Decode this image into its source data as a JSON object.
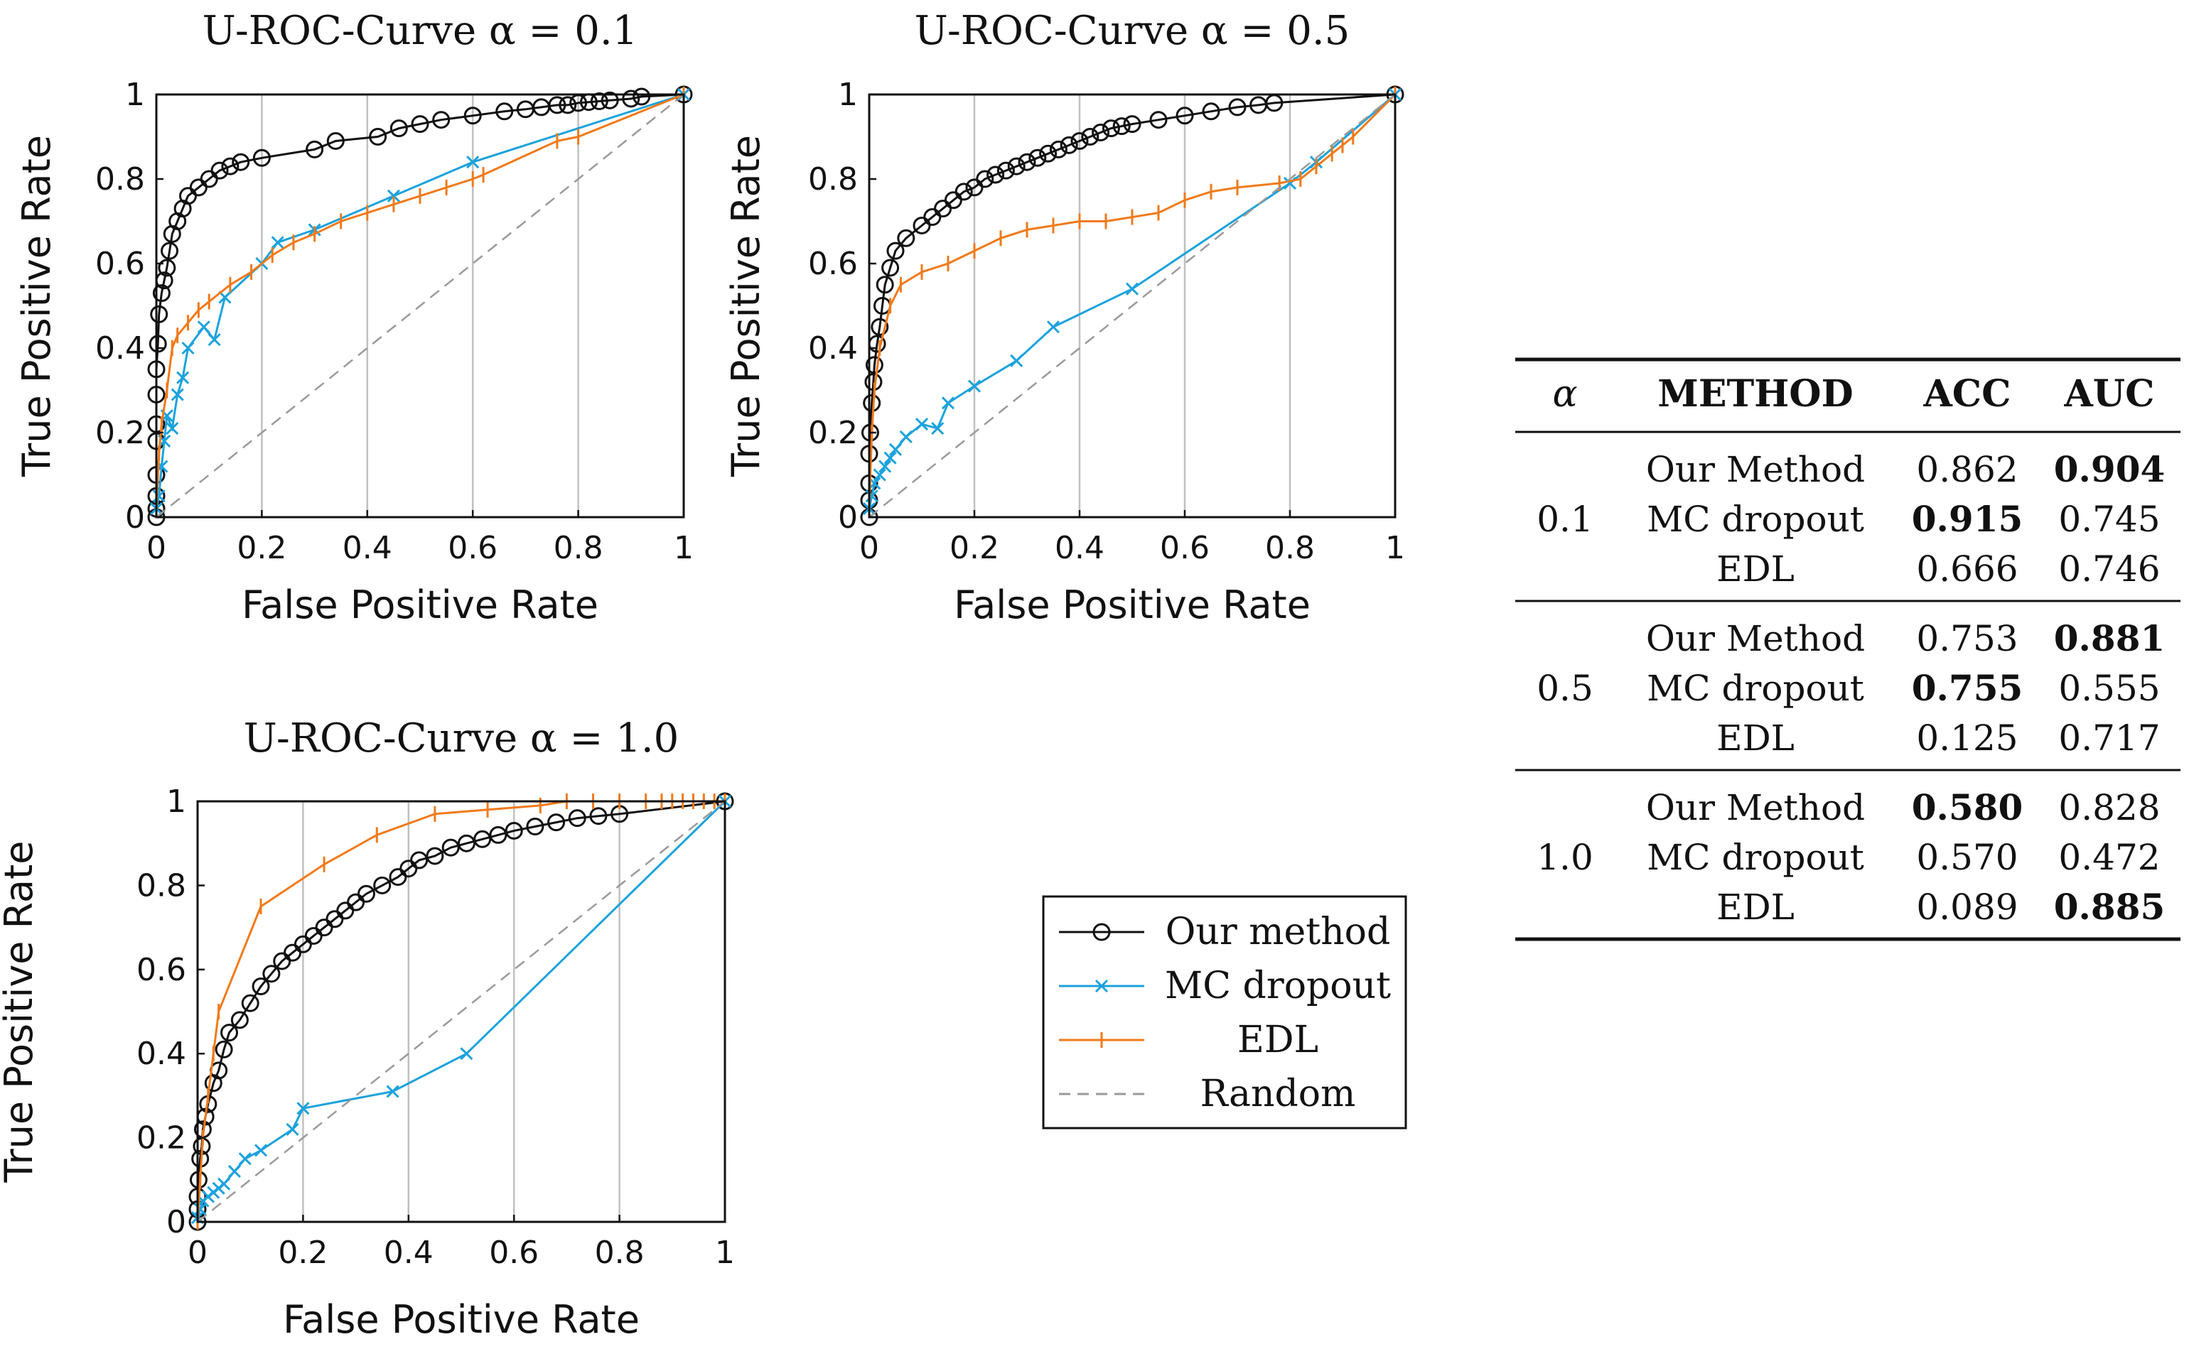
{
  "colors": {
    "our_method": "#111111",
    "mc_dropout": "#1ca2dc",
    "edl": "#f07a1a",
    "random": "#9a9a9a",
    "grid": "#c0c0c0"
  },
  "chart_data": [
    {
      "type": "line",
      "title": "U-ROC-Curve α = 0.1",
      "xlabel": "False Positive Rate",
      "ylabel": "True Positive Rate",
      "xlim": [
        0,
        1
      ],
      "ylim": [
        0,
        1
      ],
      "xticks": [
        "0",
        "0.2",
        "0.4",
        "0.6",
        "0.8",
        "1"
      ],
      "yticks": [
        "0",
        "0.2",
        "0.4",
        "0.6",
        "0.8",
        "1"
      ],
      "grid": "vertical",
      "series": [
        {
          "name": "Our method",
          "marker": "circle",
          "x": [
            0,
            0,
            0,
            0,
            0,
            0,
            0,
            0,
            0.003,
            0.005,
            0.01,
            0.015,
            0.02,
            0.025,
            0.03,
            0.04,
            0.05,
            0.06,
            0.08,
            0.1,
            0.12,
            0.14,
            0.16,
            0.2,
            0.3,
            0.34,
            0.42,
            0.46,
            0.5,
            0.54,
            0.6,
            0.66,
            0.7,
            0.73,
            0.76,
            0.78,
            0.8,
            0.82,
            0.84,
            0.86,
            0.9,
            0.92,
            1.0
          ],
          "y": [
            0,
            0.02,
            0.05,
            0.1,
            0.18,
            0.22,
            0.29,
            0.35,
            0.41,
            0.48,
            0.53,
            0.56,
            0.59,
            0.63,
            0.67,
            0.7,
            0.73,
            0.76,
            0.78,
            0.8,
            0.82,
            0.83,
            0.84,
            0.85,
            0.87,
            0.89,
            0.9,
            0.92,
            0.93,
            0.94,
            0.95,
            0.96,
            0.965,
            0.97,
            0.975,
            0.975,
            0.98,
            0.982,
            0.984,
            0.986,
            0.99,
            0.995,
            1.0
          ]
        },
        {
          "name": "MC dropout",
          "marker": "x",
          "x": [
            0,
            0.005,
            0.01,
            0.015,
            0.02,
            0.03,
            0.04,
            0.05,
            0.06,
            0.09,
            0.11,
            0.13,
            0.2,
            0.23,
            0.3,
            0.45,
            0.6,
            1.0
          ],
          "y": [
            0.02,
            0.05,
            0.12,
            0.18,
            0.24,
            0.21,
            0.29,
            0.33,
            0.4,
            0.45,
            0.42,
            0.52,
            0.6,
            0.65,
            0.68,
            0.76,
            0.84,
            1.0
          ]
        },
        {
          "name": "EDL",
          "marker": "plus",
          "x": [
            0,
            0.005,
            0.01,
            0.02,
            0.03,
            0.04,
            0.06,
            0.08,
            0.1,
            0.14,
            0.18,
            0.22,
            0.26,
            0.3,
            0.35,
            0.4,
            0.45,
            0.5,
            0.55,
            0.6,
            0.62,
            0.76,
            0.8,
            1.0
          ],
          "y": [
            0.02,
            0.15,
            0.22,
            0.3,
            0.4,
            0.43,
            0.46,
            0.49,
            0.51,
            0.55,
            0.58,
            0.62,
            0.65,
            0.67,
            0.7,
            0.72,
            0.74,
            0.76,
            0.78,
            0.8,
            0.81,
            0.89,
            0.9,
            1.0
          ]
        },
        {
          "name": "Random",
          "marker": "none",
          "dashed": true,
          "x": [
            0,
            1
          ],
          "y": [
            0,
            1
          ]
        }
      ]
    },
    {
      "type": "line",
      "title": "U-ROC-Curve α = 0.5",
      "xlabel": "False Positive Rate",
      "ylabel": "True Positive Rate",
      "xlim": [
        0,
        1
      ],
      "ylim": [
        0,
        1
      ],
      "xticks": [
        "0",
        "0.2",
        "0.4",
        "0.6",
        "0.8",
        "1"
      ],
      "yticks": [
        "0",
        "0.2",
        "0.4",
        "0.6",
        "0.8",
        "1"
      ],
      "grid": "vertical",
      "series": [
        {
          "name": "Our method",
          "marker": "circle",
          "x": [
            0,
            0,
            0,
            0,
            0.002,
            0.005,
            0.008,
            0.01,
            0.015,
            0.02,
            0.025,
            0.03,
            0.04,
            0.05,
            0.07,
            0.1,
            0.12,
            0.14,
            0.16,
            0.18,
            0.2,
            0.22,
            0.24,
            0.26,
            0.28,
            0.3,
            0.32,
            0.34,
            0.36,
            0.38,
            0.4,
            0.42,
            0.44,
            0.46,
            0.48,
            0.5,
            0.55,
            0.6,
            0.65,
            0.7,
            0.74,
            0.77,
            1.0
          ],
          "y": [
            0,
            0.04,
            0.08,
            0.15,
            0.2,
            0.27,
            0.32,
            0.36,
            0.41,
            0.45,
            0.5,
            0.55,
            0.59,
            0.63,
            0.66,
            0.69,
            0.71,
            0.73,
            0.75,
            0.77,
            0.78,
            0.8,
            0.81,
            0.82,
            0.83,
            0.84,
            0.85,
            0.86,
            0.87,
            0.88,
            0.89,
            0.9,
            0.91,
            0.92,
            0.925,
            0.93,
            0.94,
            0.95,
            0.96,
            0.97,
            0.975,
            0.98,
            1.0
          ]
        },
        {
          "name": "MC dropout",
          "marker": "x",
          "x": [
            0,
            0.005,
            0.01,
            0.02,
            0.03,
            0.04,
            0.05,
            0.07,
            0.1,
            0.13,
            0.15,
            0.2,
            0.28,
            0.35,
            0.5,
            0.8,
            0.85,
            1.0
          ],
          "y": [
            0.02,
            0.05,
            0.08,
            0.1,
            0.12,
            0.14,
            0.16,
            0.19,
            0.22,
            0.21,
            0.27,
            0.31,
            0.37,
            0.45,
            0.54,
            0.79,
            0.84,
            1.0
          ]
        },
        {
          "name": "EDL",
          "marker": "plus",
          "x": [
            0,
            0.005,
            0.01,
            0.02,
            0.04,
            0.06,
            0.1,
            0.15,
            0.2,
            0.25,
            0.3,
            0.35,
            0.4,
            0.45,
            0.5,
            0.55,
            0.6,
            0.65,
            0.7,
            0.78,
            0.82,
            0.85,
            0.88,
            0.9,
            0.92,
            1.0
          ],
          "y": [
            0.02,
            0.2,
            0.3,
            0.4,
            0.5,
            0.55,
            0.58,
            0.6,
            0.63,
            0.66,
            0.68,
            0.69,
            0.7,
            0.7,
            0.71,
            0.72,
            0.75,
            0.77,
            0.78,
            0.79,
            0.8,
            0.83,
            0.86,
            0.88,
            0.9,
            1.0
          ]
        },
        {
          "name": "Random",
          "marker": "none",
          "dashed": true,
          "x": [
            0,
            1
          ],
          "y": [
            0,
            1
          ]
        }
      ]
    },
    {
      "type": "line",
      "title": "U-ROC-Curve α = 1.0",
      "xlabel": "False Positive Rate",
      "ylabel": "True Positive Rate",
      "xlim": [
        0,
        1
      ],
      "ylim": [
        0,
        1
      ],
      "xticks": [
        "0",
        "0.2",
        "0.4",
        "0.6",
        "0.8",
        "1"
      ],
      "yticks": [
        "0",
        "0.2",
        "0.4",
        "0.6",
        "0.8",
        "1"
      ],
      "grid": "vertical",
      "series": [
        {
          "name": "Our method",
          "marker": "circle",
          "x": [
            0,
            0,
            0,
            0.002,
            0.005,
            0.008,
            0.01,
            0.015,
            0.02,
            0.03,
            0.04,
            0.05,
            0.06,
            0.08,
            0.1,
            0.12,
            0.14,
            0.16,
            0.18,
            0.2,
            0.22,
            0.24,
            0.26,
            0.28,
            0.3,
            0.32,
            0.35,
            0.38,
            0.4,
            0.42,
            0.45,
            0.48,
            0.51,
            0.54,
            0.57,
            0.6,
            0.64,
            0.68,
            0.72,
            0.76,
            0.8,
            1.0
          ],
          "y": [
            0,
            0.03,
            0.06,
            0.1,
            0.15,
            0.18,
            0.22,
            0.25,
            0.28,
            0.33,
            0.36,
            0.41,
            0.45,
            0.48,
            0.52,
            0.56,
            0.59,
            0.62,
            0.64,
            0.66,
            0.68,
            0.7,
            0.72,
            0.74,
            0.76,
            0.78,
            0.8,
            0.82,
            0.84,
            0.86,
            0.87,
            0.89,
            0.9,
            0.91,
            0.92,
            0.93,
            0.94,
            0.95,
            0.96,
            0.965,
            0.97,
            1.0
          ]
        },
        {
          "name": "MC dropout",
          "marker": "x",
          "x": [
            0,
            0.005,
            0.01,
            0.02,
            0.03,
            0.04,
            0.05,
            0.07,
            0.09,
            0.12,
            0.18,
            0.2,
            0.37,
            0.51,
            1.0
          ],
          "y": [
            0.01,
            0.03,
            0.05,
            0.06,
            0.07,
            0.08,
            0.09,
            0.12,
            0.15,
            0.17,
            0.22,
            0.27,
            0.31,
            0.4,
            1.0
          ]
        },
        {
          "name": "EDL",
          "marker": "plus",
          "x": [
            0,
            0.005,
            0.01,
            0.02,
            0.03,
            0.04,
            0.12,
            0.24,
            0.34,
            0.45,
            0.55,
            0.65,
            0.7,
            0.75,
            0.8,
            0.85,
            0.88,
            0.9,
            0.92,
            0.94,
            0.96,
            0.98,
            1.0
          ],
          "y": [
            0,
            0.1,
            0.2,
            0.3,
            0.4,
            0.5,
            0.75,
            0.85,
            0.92,
            0.97,
            0.98,
            0.99,
            1.0,
            1.0,
            1.0,
            1.0,
            1.0,
            1.0,
            1.0,
            1.0,
            1.0,
            1.0,
            1.0
          ]
        },
        {
          "name": "Random",
          "marker": "none",
          "dashed": true,
          "x": [
            0,
            1
          ],
          "y": [
            0,
            1
          ]
        }
      ]
    },
    {
      "type": "table",
      "columns": [
        "α",
        "METHOD",
        "ACC",
        "AUC"
      ],
      "groups": [
        {
          "alpha": "0.1",
          "rows": [
            {
              "method": "Our Method",
              "acc": "0.862",
              "auc": "0.904",
              "bold": [
                "auc"
              ]
            },
            {
              "method": "MC dropout",
              "acc": "0.915",
              "auc": "0.745",
              "bold": [
                "acc"
              ]
            },
            {
              "method": "EDL",
              "acc": "0.666",
              "auc": "0.746",
              "bold": []
            }
          ]
        },
        {
          "alpha": "0.5",
          "rows": [
            {
              "method": "Our Method",
              "acc": "0.753",
              "auc": "0.881",
              "bold": [
                "auc"
              ]
            },
            {
              "method": "MC dropout",
              "acc": "0.755",
              "auc": "0.555",
              "bold": [
                "acc"
              ]
            },
            {
              "method": "EDL",
              "acc": "0.125",
              "auc": "0.717",
              "bold": []
            }
          ]
        },
        {
          "alpha": "1.0",
          "rows": [
            {
              "method": "Our Method",
              "acc": "0.580",
              "auc": "0.828",
              "bold": [
                "acc"
              ]
            },
            {
              "method": "MC dropout",
              "acc": "0.570",
              "auc": "0.472",
              "bold": []
            },
            {
              "method": "EDL",
              "acc": "0.089",
              "auc": "0.885",
              "bold": [
                "auc"
              ]
            }
          ]
        }
      ]
    }
  ],
  "legend": {
    "entries": [
      {
        "label": "Our method",
        "marker": "circle",
        "series": "our_method"
      },
      {
        "label": "MC dropout",
        "marker": "x",
        "series": "mc_dropout"
      },
      {
        "label": "EDL",
        "marker": "plus",
        "series": "edl"
      },
      {
        "label": "Random",
        "marker": "none",
        "series": "random"
      }
    ]
  }
}
